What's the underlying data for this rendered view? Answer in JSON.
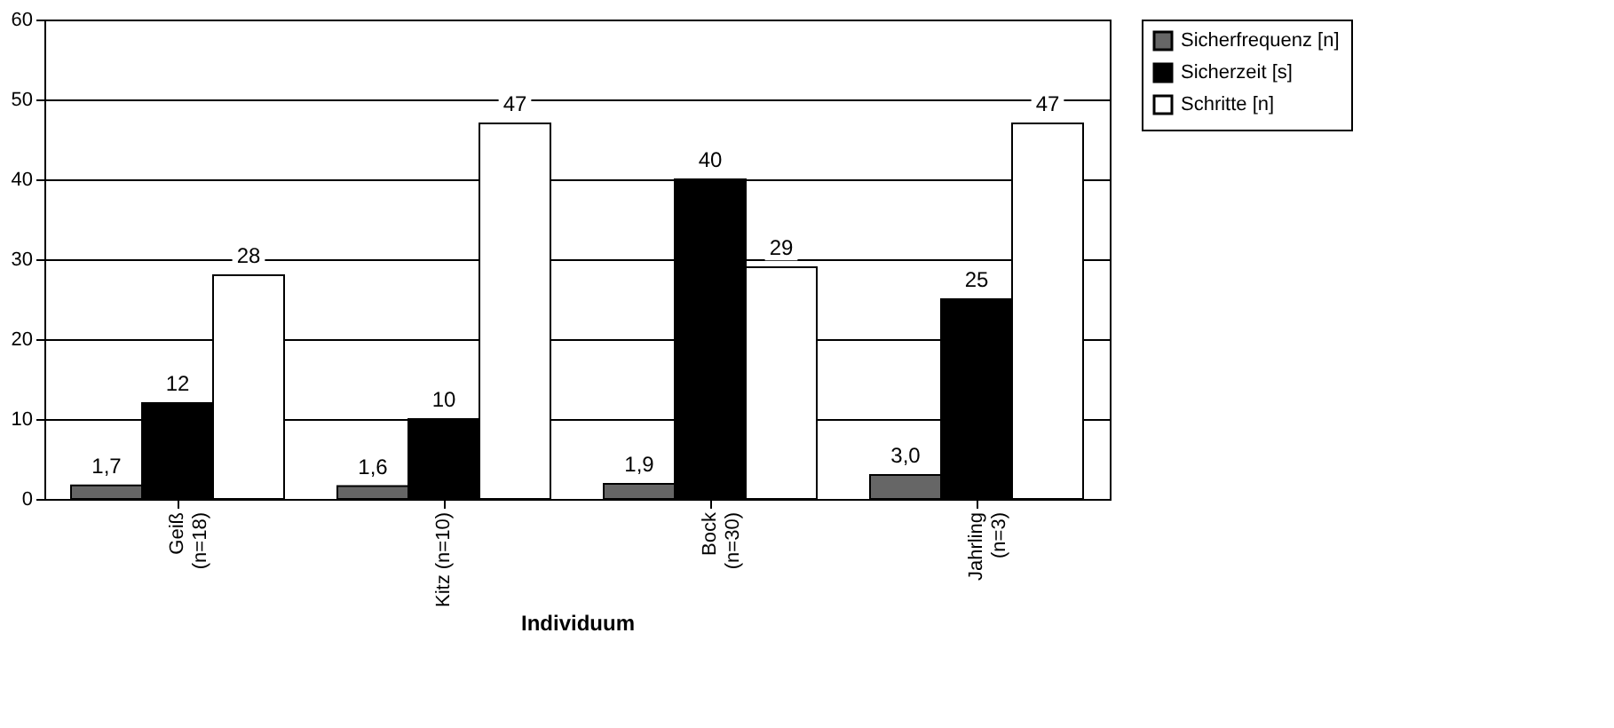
{
  "chart_data": {
    "type": "bar",
    "xlabel": "Individuum",
    "categories": [
      "Geiß\n(n=18)",
      "Kitz (n=10)",
      "Bock\n(n=30)",
      "Jahrling\n(n=3)"
    ],
    "series": [
      {
        "name": "Sicherfrequenz [n]",
        "color": "#666666",
        "values": [
          1.7,
          1.6,
          1.9,
          3.0
        ],
        "value_labels": [
          "1,7",
          "1,6",
          "1,9",
          "3,0"
        ]
      },
      {
        "name": "Sicherzeit [s]",
        "color": "#000000",
        "values": [
          12,
          10,
          40,
          25
        ],
        "value_labels": [
          "12",
          "10",
          "40",
          "25"
        ]
      },
      {
        "name": "Schritte [n]",
        "color": "#ffffff",
        "values": [
          28,
          47,
          29,
          47
        ],
        "value_labels": [
          "28",
          "47",
          "29",
          "47"
        ]
      }
    ],
    "ylim": [
      0,
      60
    ],
    "yticks": [
      0,
      10,
      20,
      30,
      40,
      50,
      60
    ],
    "grid": "y",
    "legend": "right"
  }
}
